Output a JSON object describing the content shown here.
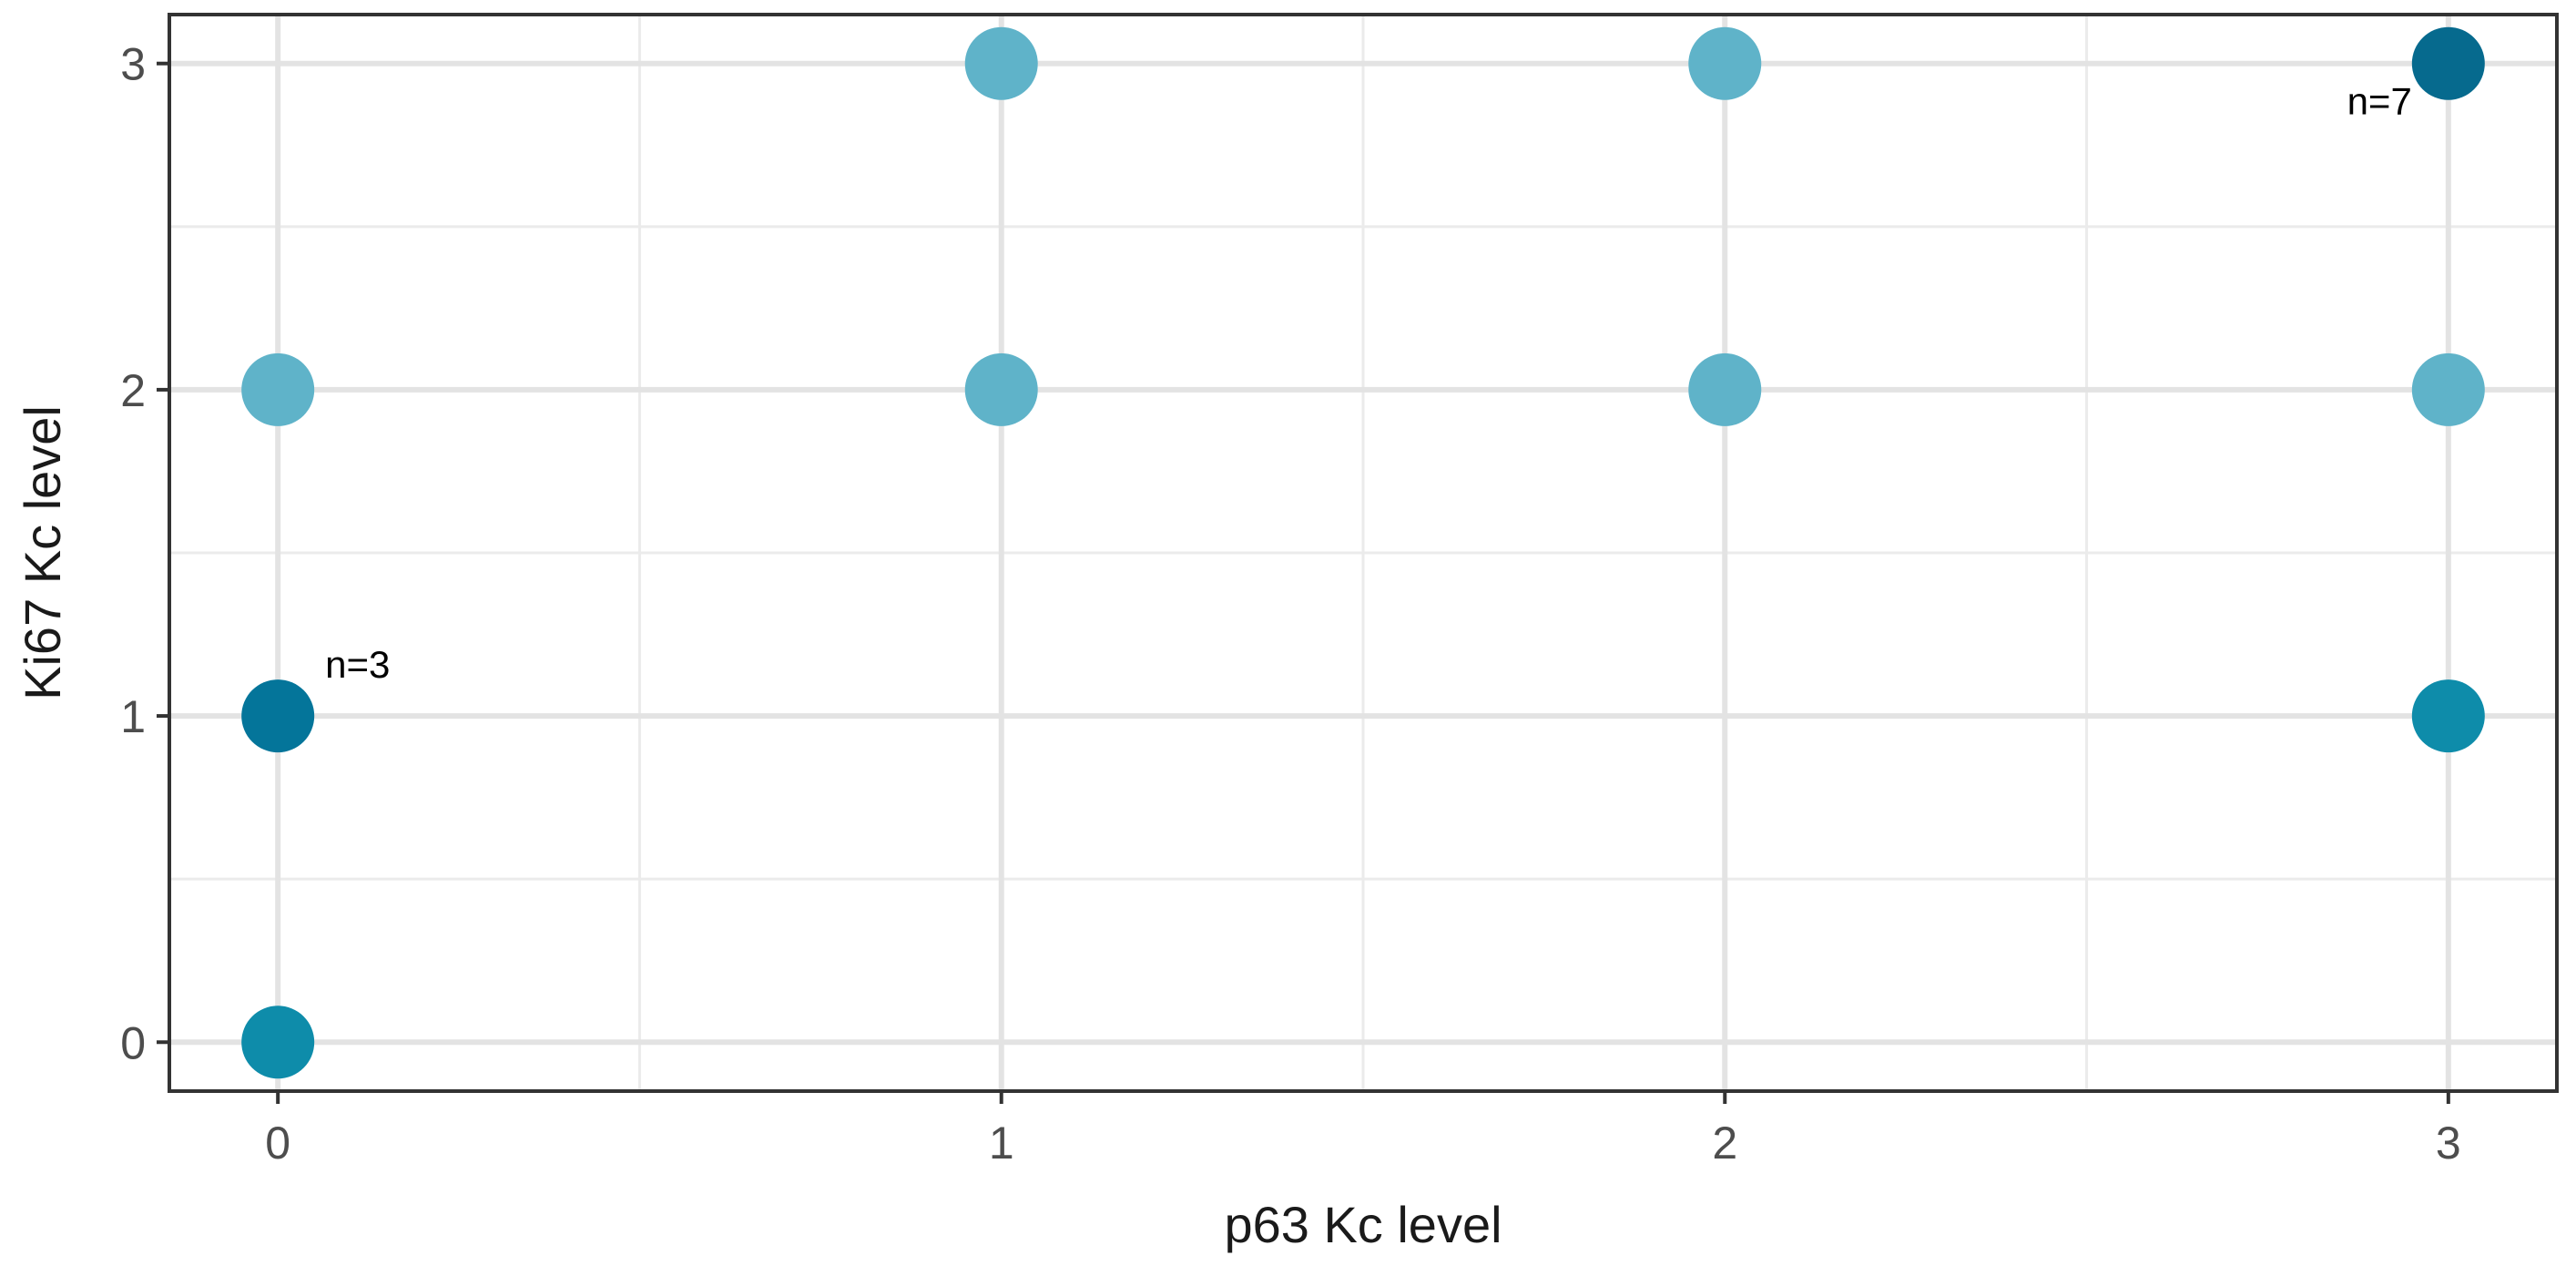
{
  "chart_data": {
    "type": "scatter",
    "xlabel": "p63 Kc level",
    "ylabel": "Ki67 Kc level",
    "xlim": [
      -0.15,
      3.15
    ],
    "ylim": [
      -0.15,
      3.15
    ],
    "x_ticks": [
      0,
      1,
      2,
      3
    ],
    "y_ticks": [
      0,
      1,
      2,
      3
    ],
    "x_tick_labels": [
      "0",
      "1",
      "2",
      "3"
    ],
    "y_tick_labels": [
      "0",
      "1",
      "2",
      "3"
    ],
    "grid": true,
    "legend": "none",
    "points": [
      {
        "x": 0,
        "y": 0,
        "color": "#0e8caa"
      },
      {
        "x": 0,
        "y": 1,
        "color": "#04759a"
      },
      {
        "x": 0,
        "y": 2,
        "color": "#5fb3c9"
      },
      {
        "x": 1,
        "y": 2,
        "color": "#5fb3c9"
      },
      {
        "x": 1,
        "y": 3,
        "color": "#5fb3c9"
      },
      {
        "x": 2,
        "y": 2,
        "color": "#5fb3c9"
      },
      {
        "x": 2,
        "y": 3,
        "color": "#5fb3c9"
      },
      {
        "x": 3,
        "y": 1,
        "color": "#0e8caa"
      },
      {
        "x": 3,
        "y": 2,
        "color": "#5fb3c9"
      },
      {
        "x": 3,
        "y": 3,
        "color": "#066a8e"
      }
    ],
    "annotations": [
      {
        "text": "n=3",
        "x": 0,
        "y": 1,
        "position": "upper-right"
      },
      {
        "text": "n=7",
        "x": 3,
        "y": 3,
        "position": "lower-left"
      }
    ]
  }
}
